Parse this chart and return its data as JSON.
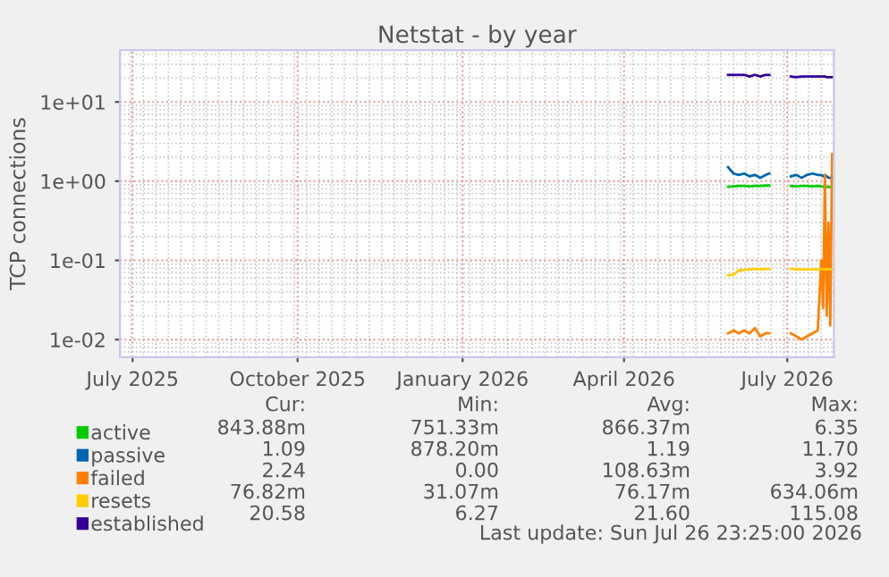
{
  "chart_data": {
    "type": "line",
    "title": "Netstat - by year",
    "ylabel": "TCP connections",
    "x": [
      "2026-05-29",
      "2026-06-01",
      "2026-06-04",
      "2026-06-07",
      "2026-06-10",
      "2026-06-13",
      "2026-06-16",
      "2026-06-19",
      "2026-06-21",
      "2026-06-27",
      "2026-07-03",
      "2026-07-06",
      "2026-07-09",
      "2026-07-12",
      "2026-07-15",
      "2026-07-18",
      "2026-07-20",
      "2026-07-21",
      "2026-07-22",
      "2026-07-23",
      "2026-07-24",
      "2026-07-25",
      "2026-07-26"
    ],
    "series": [
      {
        "name": "active",
        "color": "#00cc00",
        "values": [
          0.85,
          0.86,
          0.87,
          0.87,
          0.86,
          0.87,
          0.87,
          0.88,
          0.88,
          null,
          0.87,
          0.86,
          0.87,
          0.87,
          0.86,
          0.87,
          0.86,
          0.85,
          0.85,
          0.85,
          0.85,
          0.84,
          0.84
        ]
      },
      {
        "name": "passive",
        "color": "#0066b3",
        "values": [
          1.5,
          1.25,
          1.2,
          1.25,
          1.15,
          1.2,
          1.1,
          1.2,
          1.25,
          null,
          1.15,
          1.2,
          1.1,
          1.2,
          1.25,
          1.2,
          1.2,
          1.15,
          1.2,
          1.15,
          1.1,
          1.1,
          1.1
        ]
      },
      {
        "name": "failed",
        "color": "#ff8000",
        "values": [
          0.012,
          0.013,
          0.012,
          0.013,
          0.012,
          0.014,
          0.011,
          0.012,
          0.012,
          null,
          0.012,
          0.011,
          0.01,
          0.011,
          0.012,
          0.013,
          0.1,
          0.025,
          1.2,
          0.02,
          0.3,
          0.015,
          2.2
        ]
      },
      {
        "name": "resets",
        "color": "#ffcc00",
        "values": [
          0.065,
          0.066,
          0.075,
          0.076,
          0.077,
          0.078,
          0.077,
          0.078,
          0.078,
          null,
          0.078,
          0.077,
          0.077,
          0.077,
          0.077,
          0.077,
          0.077,
          0.077,
          0.077,
          0.078,
          0.077,
          0.077,
          0.077
        ]
      },
      {
        "name": "established",
        "color": "#330099",
        "values": [
          22,
          22,
          22,
          22,
          21,
          22,
          21,
          22,
          22,
          null,
          21,
          20.5,
          21,
          21,
          21,
          21,
          21,
          21,
          21,
          20.5,
          20.5,
          20.5,
          20.5
        ]
      }
    ],
    "log": "y",
    "ylim": [
      0.006,
      45
    ],
    "yticks": [
      {
        "value": 0.01,
        "label": "1e-02"
      },
      {
        "value": 0.1,
        "label": "1e-01"
      },
      {
        "value": 1,
        "label": "1e+00"
      },
      {
        "value": 10,
        "label": "1e+01"
      }
    ],
    "xlim": [
      "2025-06-24",
      "2026-07-27"
    ],
    "xticks": [
      {
        "value": "2025-07-01",
        "label": "July 2025"
      },
      {
        "value": "2025-10-01",
        "label": "October 2025"
      },
      {
        "value": "2026-01-01",
        "label": "January 2026"
      },
      {
        "value": "2026-04-01",
        "label": "April 2026"
      },
      {
        "value": "2026-07-01",
        "label": "July 2026"
      }
    ],
    "grid": true,
    "legend": "bottom",
    "annotations": [
      "Cur:",
      "Min:",
      "Avg:",
      "Max:",
      "843.88m",
      "751.33m",
      "866.37m",
      "6.35",
      "1.09",
      "878.20m",
      "1.19",
      "11.70",
      "2.24",
      "0.00",
      "108.63m",
      "3.92",
      "76.82m",
      "31.07m",
      "76.17m",
      "634.06m",
      "20.58",
      "6.27",
      "21.60",
      "115.08",
      "Last update: Sun Jul 26 23:25:00 2026"
    ]
  }
}
